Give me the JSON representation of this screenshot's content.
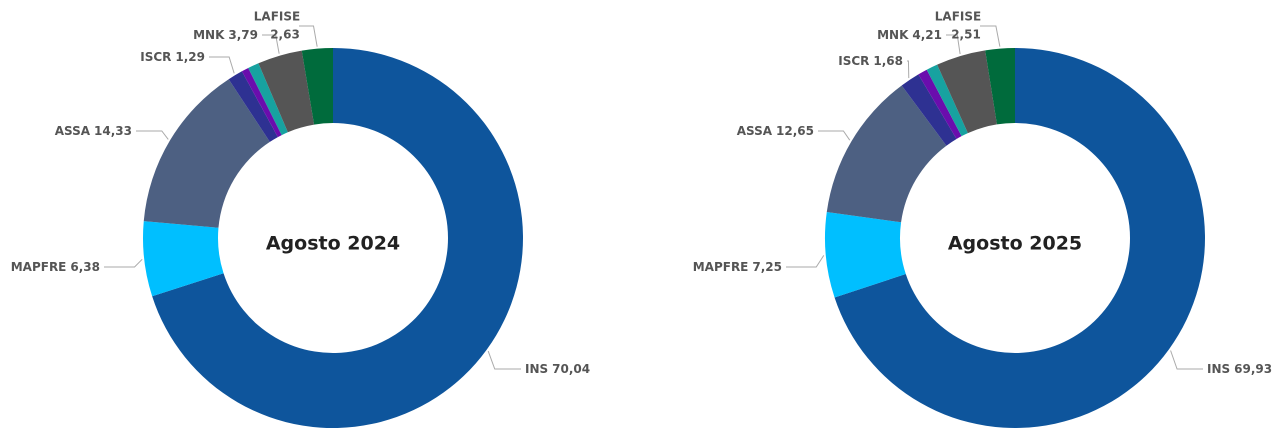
{
  "chart_data": [
    {
      "type": "donut",
      "title": "Agosto 2024",
      "categories": [
        "INS",
        "MAPFRE",
        "ASSA",
        "ISCR",
        null,
        null,
        "MNK",
        "LAFISE"
      ],
      "values": [
        70.04,
        6.38,
        14.33,
        1.29,
        0.6,
        0.94,
        3.79,
        2.63
      ],
      "value_labels": [
        "70,04",
        "6,38",
        "14,33",
        "1,29",
        null,
        null,
        "3,79",
        "2,63"
      ],
      "colors": [
        "#0e559c",
        "#00bfff",
        "#4d6082",
        "#2e3192",
        "#6a0dad",
        "#17a2a0",
        "#555555",
        "#006b3c"
      ]
    },
    {
      "type": "donut",
      "title": "Agosto 2025",
      "categories": [
        "INS",
        "MAPFRE",
        "ASSA",
        "ISCR",
        null,
        null,
        "MNK",
        "LAFISE"
      ],
      "values": [
        69.93,
        7.25,
        12.65,
        1.68,
        0.8,
        0.97,
        4.21,
        2.51
      ],
      "value_labels": [
        "69,93",
        "7,25",
        "12,65",
        "1,68",
        null,
        null,
        "4,21",
        "2,51"
      ],
      "colors": [
        "#0e559c",
        "#00bfff",
        "#4d6082",
        "#2e3192",
        "#6a0dad",
        "#17a2a0",
        "#555555",
        "#006b3c"
      ]
    }
  ]
}
